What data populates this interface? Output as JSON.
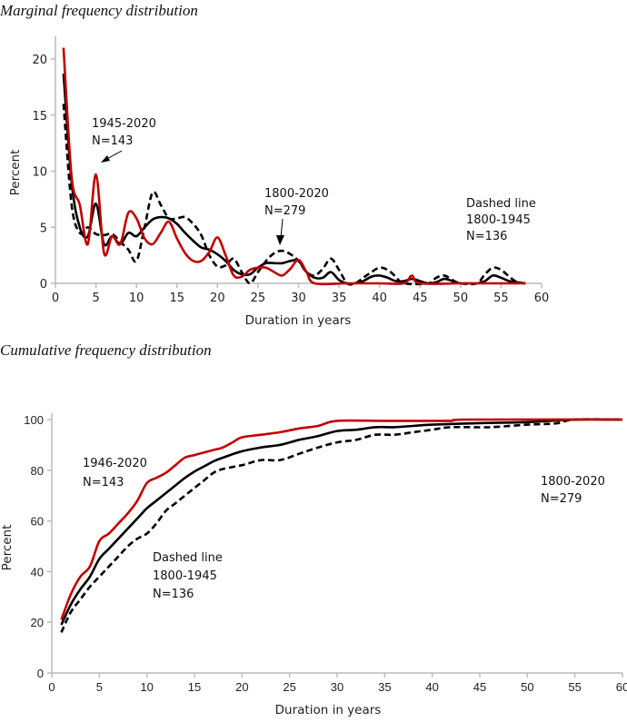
{
  "chart_data": [
    {
      "type": "line",
      "title": "Marginal frequency distribution",
      "xlabel": "Duration in years",
      "ylabel": "Percent",
      "xlim": [
        0,
        60
      ],
      "ylim": [
        0,
        22
      ],
      "xticks": [
        "0",
        "5",
        "10",
        "15",
        "20",
        "25",
        "30",
        "35",
        "40",
        "45",
        "50",
        "55",
        "60"
      ],
      "yticks": [
        "0",
        "5",
        "10",
        "15",
        "20"
      ],
      "grid": false,
      "annotations": [
        {
          "lines": [
            "1945-2020",
            "N=143"
          ]
        },
        {
          "lines": [
            "1800-2020",
            "N=279"
          ]
        },
        {
          "lines": [
            "Dashed line",
            "1800-1945",
            "N=136"
          ]
        }
      ],
      "series": [
        {
          "name": "1945-2020 (N=143)",
          "color": "#c00000",
          "style": "solid",
          "x": [
            1,
            2,
            3,
            4,
            5,
            6,
            7,
            8,
            9,
            10,
            11,
            12,
            13,
            14,
            15,
            16,
            17,
            18,
            19,
            20,
            21,
            22,
            23,
            24,
            25,
            26,
            27,
            28,
            29,
            30,
            31,
            32,
            36,
            40,
            43,
            44,
            45,
            50,
            55,
            58
          ],
          "y": [
            21,
            9.5,
            7,
            3.5,
            9.7,
            2.7,
            4.2,
            3.5,
            6.3,
            5.8,
            4,
            3.5,
            4.5,
            5.5,
            4,
            2.7,
            2,
            2,
            2.8,
            4.1,
            2.5,
            0.7,
            0.6,
            1.2,
            1.4,
            1.4,
            1,
            0.7,
            1.3,
            2.1,
            1,
            0,
            0,
            0,
            0,
            0.7,
            0,
            0,
            0,
            0
          ]
        },
        {
          "name": "1800-2020 (N=279)",
          "color": "#000000",
          "style": "solid",
          "x": [
            1,
            2,
            3,
            4,
            5,
            6,
            7,
            8,
            9,
            10,
            11,
            12,
            13,
            14,
            15,
            16,
            17,
            18,
            19,
            20,
            21,
            22,
            23,
            24,
            25,
            26,
            27,
            28,
            29,
            30,
            31,
            32,
            33,
            34,
            35,
            36,
            37,
            38,
            39,
            40,
            41,
            42,
            43,
            44,
            45,
            46,
            47,
            48,
            49,
            50,
            51,
            52,
            53,
            54,
            55,
            56,
            57,
            58
          ],
          "y": [
            18.7,
            9,
            5,
            4.2,
            7.1,
            3.5,
            4.2,
            3.5,
            4.5,
            4.2,
            5,
            5.7,
            5.9,
            5.8,
            5.3,
            4.5,
            3.8,
            3.2,
            3,
            2.6,
            2,
            1.2,
            0.8,
            0.8,
            1.4,
            1.8,
            1.8,
            1.8,
            2,
            2,
            1,
            0.5,
            0.5,
            1,
            0.3,
            0,
            0,
            0.2,
            0.6,
            0.7,
            0.5,
            0.2,
            0.2,
            0.4,
            0.2,
            0,
            0.1,
            0.4,
            0.2,
            0,
            0,
            0,
            0.2,
            0.7,
            0.5,
            0.2,
            0.1,
            0
          ]
        },
        {
          "name": "1800-1945 (N=136)",
          "color": "#000000",
          "style": "dashed",
          "x": [
            1,
            2,
            3,
            4,
            5,
            6,
            7,
            8,
            9,
            10,
            11,
            12,
            13,
            14,
            15,
            16,
            17,
            18,
            19,
            20,
            21,
            22,
            23,
            24,
            25,
            26,
            27,
            28,
            29,
            30,
            31,
            32,
            33,
            34,
            35,
            36,
            37,
            38,
            39,
            40,
            41,
            42,
            43,
            46,
            47,
            48,
            49,
            50,
            52,
            53,
            54,
            55,
            56,
            57,
            58
          ],
          "y": [
            16,
            7,
            4.5,
            5,
            4.4,
            4.3,
            4.4,
            3.7,
            3,
            2,
            5,
            8.1,
            7,
            5.8,
            5.8,
            5.9,
            5.3,
            4.3,
            2.5,
            1.5,
            1.6,
            2.2,
            1,
            0,
            1,
            2,
            2.7,
            2.9,
            2.6,
            2,
            1,
            0.7,
            1.3,
            2.2,
            1.2,
            0,
            0,
            0.5,
            1,
            1.4,
            1.2,
            0.6,
            0,
            0,
            0.5,
            0.7,
            0.3,
            0,
            0,
            0.8,
            1.4,
            1.2,
            0.6,
            0.1,
            0
          ]
        }
      ]
    },
    {
      "type": "line",
      "title": "Cumulative frequency distribution",
      "xlabel": "Duration in years",
      "ylabel": "Percent",
      "xlim": [
        0,
        60
      ],
      "ylim": [
        0,
        100
      ],
      "xticks": [
        "0",
        "5",
        "10",
        "15",
        "20",
        "25",
        "30",
        "35",
        "40",
        "45",
        "50",
        "55",
        "60"
      ],
      "yticks": [
        "0",
        "20",
        "40",
        "60",
        "80",
        "100"
      ],
      "grid": false,
      "annotations": [
        {
          "lines": [
            "1946-2020",
            "N=143"
          ]
        },
        {
          "lines": [
            "1800-2020",
            "N=279"
          ]
        },
        {
          "lines": [
            "Dashed line",
            "1800-1945",
            "N=136"
          ]
        }
      ],
      "series": [
        {
          "name": "1946-2020 (N=143)",
          "color": "#c00000",
          "style": "solid",
          "x": [
            1,
            2,
            3,
            4,
            5,
            6,
            7,
            8,
            9,
            10,
            11,
            12,
            13,
            14,
            15,
            16,
            17,
            18,
            19,
            20,
            22,
            24,
            26,
            28,
            30,
            35,
            40,
            42,
            44,
            60
          ],
          "y": [
            21,
            31,
            38,
            42,
            52,
            55,
            59,
            63,
            68,
            75,
            77,
            79,
            82,
            85,
            86,
            87,
            88,
            89,
            91,
            93,
            94,
            95,
            96.5,
            97.5,
            99.5,
            99.5,
            99.5,
            99.5,
            100,
            100
          ]
        },
        {
          "name": "1800-2020 (N=279)",
          "color": "#000000",
          "style": "solid",
          "x": [
            1,
            2,
            3,
            4,
            5,
            6,
            7,
            8,
            9,
            10,
            11,
            12,
            13,
            14,
            15,
            16,
            17,
            18,
            20,
            22,
            24,
            26,
            28,
            30,
            32,
            34,
            36,
            38,
            40,
            45,
            50,
            55,
            60
          ],
          "y": [
            19,
            27,
            33,
            38,
            45,
            49,
            53,
            57,
            61,
            65,
            68,
            71,
            74,
            77,
            79.5,
            81.5,
            83.5,
            85,
            87.5,
            89,
            90,
            92,
            93.5,
            95.5,
            96,
            97,
            97,
            97.5,
            98,
            98.6,
            99,
            100,
            100
          ]
        },
        {
          "name": "1800-1945 (N=136)",
          "color": "#000000",
          "style": "dashed",
          "x": [
            1,
            2,
            3,
            4,
            5,
            6,
            7,
            8,
            9,
            10,
            11,
            12,
            13,
            14,
            15,
            16,
            17,
            18,
            20,
            22,
            24,
            26,
            28,
            30,
            32,
            34,
            36,
            38,
            40,
            42,
            46,
            50,
            53,
            55,
            60
          ],
          "y": [
            16,
            24,
            29,
            34,
            38,
            42,
            46,
            50,
            53,
            55,
            59,
            64,
            67,
            70,
            73,
            76,
            79,
            80.5,
            82,
            84,
            84,
            86.5,
            89,
            91,
            92,
            94,
            94,
            95,
            96,
            97,
            97,
            98,
            98.5,
            100,
            100
          ]
        }
      ]
    }
  ]
}
